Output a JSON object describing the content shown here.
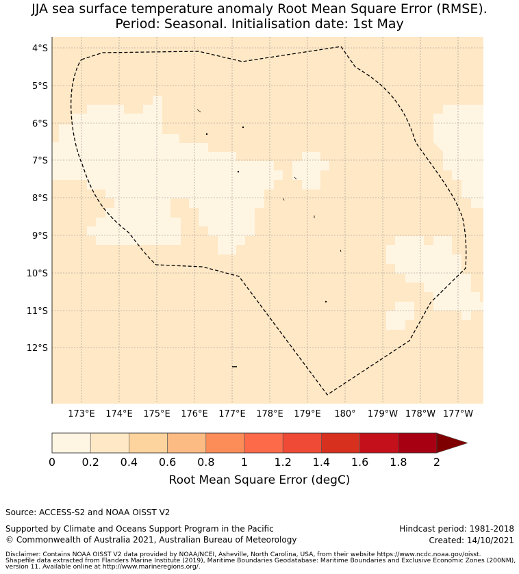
{
  "title": {
    "line1": "JJA sea surface temperature anomaly Root Mean Square Error (RMSE).",
    "line2": "Period: Seasonal. Initialisation date: 1st May"
  },
  "map": {
    "lat_labels": [
      "4°S",
      "5°S",
      "6°S",
      "7°S",
      "8°S",
      "9°S",
      "10°S",
      "11°S",
      "12°S"
    ],
    "lon_labels": [
      "173°E",
      "174°E",
      "175°E",
      "176°E",
      "177°E",
      "178°E",
      "179°E",
      "180°",
      "179°W",
      "178°W",
      "177°W"
    ],
    "background_class": "0.2-0.4",
    "low_error_class": "0-0.2"
  },
  "colorbar": {
    "ticks": [
      "0",
      "0.2",
      "0.4",
      "0.6",
      "0.8",
      "1",
      "1.2",
      "1.4",
      "1.6",
      "1.8",
      "2"
    ],
    "colors": [
      "#fff5e3",
      "#ffe8c6",
      "#fdd49e",
      "#fdbb84",
      "#fc8d59",
      "#fc6a4a",
      "#ef4a35",
      "#d7301f",
      "#c4101a",
      "#a60012"
    ],
    "extend_color": "#7f0000",
    "label": "Root Mean Square Error (degC)"
  },
  "footer": {
    "source": "Source: ACCESS-S2 and NOAA OISST V2",
    "support": "Supported by Climate and Oceans Support Program in the Pacific",
    "copyright": "© Commonwealth of Australia 2021, Australian Bureau of Meteorology",
    "hindcast": "Hindcast period: 1981-2018",
    "created": "Created: 14/10/2021",
    "disclaimer1": "Disclaimer: Contains NOAA OISST V2 data provided by NOAA/NCEI, Asheville, North Carolina, USA, from their website https://www.ncdc.noaa.gov/oisst.",
    "disclaimer2": "Shapefile data extracted from Flanders Marine Institute (2019), Maritime Boundaries Geodatabase: Maritime Boundaries and Exclusive Economic Zones (200NM),",
    "disclaimer3": "version 11. Available online at http://www.marineregions.org/."
  }
}
